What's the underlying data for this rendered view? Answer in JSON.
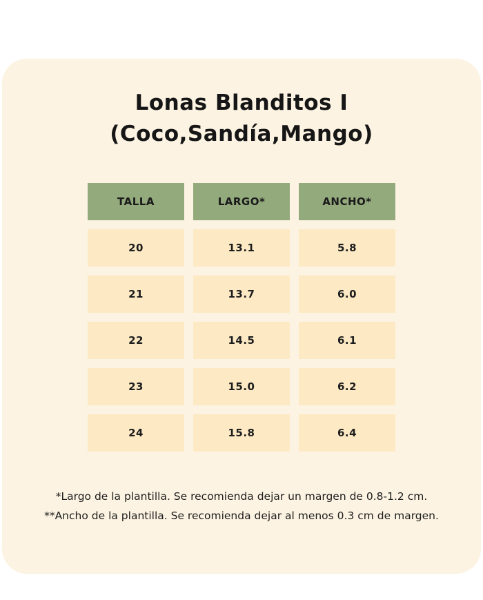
{
  "page": {
    "title_line1": "Lonas Blanditos I",
    "title_line2": "(Coco,Sandía,Mango)"
  },
  "table": {
    "headers": [
      "TALLA",
      "LARGO*",
      "ANCHO*"
    ],
    "rows": [
      [
        "20",
        "13.1",
        "5.8"
      ],
      [
        "21",
        "13.7",
        "6.0"
      ],
      [
        "22",
        "14.5",
        "6.1"
      ],
      [
        "23",
        "15.0",
        "6.2"
      ],
      [
        "24",
        "15.8",
        "6.4"
      ]
    ]
  },
  "footnotes": {
    "line1": "*Largo de la plantilla. Se recomienda dejar un margen de 0.8-1.2 cm.",
    "line2": "**Ancho de la plantilla. Se recomienda dejar al menos 0.3 cm de margen."
  },
  "colors": {
    "card_background": "#fcf3e2",
    "header_background": "#93aa7d",
    "cell_background": "#fdeac5",
    "text": "#1d1d1d"
  },
  "chart_data": {
    "type": "table",
    "title": "Lonas Blanditos I (Coco,Sandía,Mango)",
    "columns": [
      "TALLA",
      "LARGO*",
      "ANCHO*"
    ],
    "rows": [
      [
        20,
        13.1,
        5.8
      ],
      [
        21,
        13.7,
        6.0
      ],
      [
        22,
        14.5,
        6.1
      ],
      [
        23,
        15.0,
        6.2
      ],
      [
        24,
        15.8,
        6.4
      ]
    ],
    "notes": [
      "*Largo de la plantilla. Se recomienda dejar un margen de 0.8-1.2 cm.",
      "**Ancho de la plantilla. Se recomienda dejar al menos 0.3 cm de margen."
    ]
  }
}
